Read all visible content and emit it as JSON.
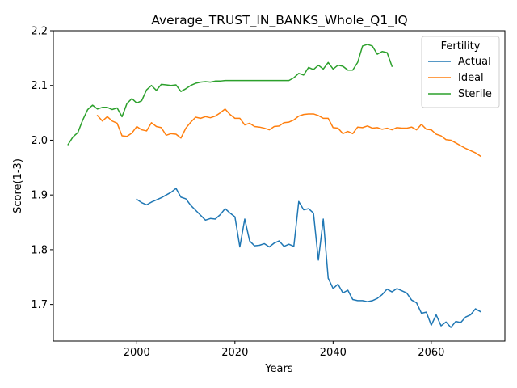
{
  "chart_data": {
    "type": "line",
    "title": "Average_TRUST_IN_BANKS_Whole_Q1_IQ",
    "xlabel": "Years",
    "ylabel": "Score(1-3)",
    "xlim": [
      1983,
      2075
    ],
    "ylim": [
      1.633,
      2.2
    ],
    "x_ticks": [
      2000,
      2020,
      2040,
      2060
    ],
    "y_ticks": [
      1.7,
      1.8,
      1.9,
      2.0,
      2.1,
      2.2
    ],
    "x_tick_labels": [
      "2000",
      "2020",
      "2040",
      "2060"
    ],
    "y_tick_labels": [
      "1.7",
      "1.8",
      "1.9",
      "2.0",
      "2.1",
      "2.2"
    ],
    "grid": false,
    "legend": {
      "title": "Fertility",
      "position": "top-right"
    },
    "series": [
      {
        "name": "Actual",
        "color": "#1f77b4",
        "x": [
          2000,
          2001,
          2002,
          2003,
          2004,
          2005,
          2006,
          2007,
          2008,
          2009,
          2010,
          2011,
          2012,
          2013,
          2014,
          2015,
          2016,
          2017,
          2018,
          2019,
          2020,
          2021,
          2022,
          2023,
          2024,
          2025,
          2026,
          2027,
          2028,
          2029,
          2030,
          2031,
          2032,
          2033,
          2034,
          2035,
          2036,
          2037,
          2038,
          2039,
          2040,
          2041,
          2042,
          2043,
          2044,
          2045,
          2046,
          2047,
          2048,
          2049,
          2050,
          2051,
          2052,
          2053,
          2054,
          2055,
          2056,
          2057,
          2058,
          2059,
          2060,
          2061,
          2062,
          2063,
          2064,
          2065,
          2066,
          2067,
          2068,
          2069,
          2070
        ],
        "values": [
          1.892,
          1.886,
          1.882,
          1.887,
          1.891,
          1.895,
          1.9,
          1.905,
          1.912,
          1.896,
          1.893,
          1.881,
          1.872,
          1.863,
          1.854,
          1.857,
          1.856,
          1.864,
          1.875,
          1.867,
          1.86,
          1.805,
          1.856,
          1.816,
          1.807,
          1.808,
          1.811,
          1.805,
          1.812,
          1.816,
          1.806,
          1.81,
          1.806,
          1.888,
          1.873,
          1.875,
          1.867,
          1.781,
          1.856,
          1.748,
          1.729,
          1.737,
          1.721,
          1.726,
          1.709,
          1.707,
          1.707,
          1.705,
          1.707,
          1.711,
          1.718,
          1.728,
          1.723,
          1.729,
          1.725,
          1.721,
          1.708,
          1.703,
          1.684,
          1.686,
          1.662,
          1.681,
          1.661,
          1.668,
          1.658,
          1.669,
          1.667,
          1.677,
          1.681,
          1.692,
          1.687
        ]
      },
      {
        "name": "Ideal",
        "color": "#ff7f0e",
        "x": [
          1992,
          1993,
          1994,
          1995,
          1996,
          1997,
          1998,
          1999,
          2000,
          2001,
          2002,
          2003,
          2004,
          2005,
          2006,
          2007,
          2008,
          2009,
          2010,
          2011,
          2012,
          2013,
          2014,
          2015,
          2016,
          2017,
          2018,
          2019,
          2020,
          2021,
          2022,
          2023,
          2024,
          2025,
          2026,
          2027,
          2028,
          2029,
          2030,
          2031,
          2032,
          2033,
          2034,
          2035,
          2036,
          2037,
          2038,
          2039,
          2040,
          2041,
          2042,
          2043,
          2044,
          2045,
          2046,
          2047,
          2048,
          2049,
          2050,
          2051,
          2052,
          2053,
          2054,
          2055,
          2056,
          2057,
          2058,
          2059,
          2060,
          2061,
          2062,
          2063,
          2064,
          2065,
          2066,
          2067,
          2068,
          2069,
          2070
        ],
        "values": [
          2.045,
          2.035,
          2.043,
          2.035,
          2.031,
          2.008,
          2.007,
          2.013,
          2.025,
          2.019,
          2.017,
          2.032,
          2.025,
          2.023,
          2.009,
          2.012,
          2.011,
          2.004,
          2.022,
          2.033,
          2.042,
          2.04,
          2.043,
          2.041,
          2.044,
          2.05,
          2.057,
          2.047,
          2.04,
          2.04,
          2.028,
          2.031,
          2.025,
          2.024,
          2.022,
          2.019,
          2.025,
          2.026,
          2.032,
          2.033,
          2.037,
          2.044,
          2.047,
          2.048,
          2.048,
          2.045,
          2.04,
          2.04,
          2.023,
          2.022,
          2.012,
          2.016,
          2.012,
          2.024,
          2.023,
          2.026,
          2.022,
          2.023,
          2.02,
          2.022,
          2.019,
          2.023,
          2.022,
          2.022,
          2.024,
          2.019,
          2.029,
          2.02,
          2.019,
          2.011,
          2.008,
          2.001,
          2.0,
          1.995,
          1.99,
          1.985,
          1.981,
          1.977,
          1.971
        ]
      },
      {
        "name": "Sterile",
        "color": "#2ca02c",
        "x": [
          1986,
          1987,
          1988,
          1989,
          1990,
          1991,
          1992,
          1993,
          1994,
          1995,
          1996,
          1997,
          1998,
          1999,
          2000,
          2001,
          2002,
          2003,
          2004,
          2005,
          2006,
          2007,
          2008,
          2009,
          2010,
          2011,
          2012,
          2013,
          2014,
          2015,
          2016,
          2017,
          2018,
          2019,
          2020,
          2021,
          2022,
          2023,
          2024,
          2025,
          2026,
          2027,
          2028,
          2029,
          2030,
          2031,
          2032,
          2033,
          2034,
          2035,
          2036,
          2037,
          2038,
          2039,
          2040,
          2041,
          2042,
          2043,
          2044,
          2045,
          2046,
          2047,
          2048,
          2049,
          2050,
          2051,
          2052
        ],
        "values": [
          1.992,
          2.006,
          2.014,
          2.037,
          2.056,
          2.064,
          2.057,
          2.06,
          2.06,
          2.056,
          2.059,
          2.043,
          2.067,
          2.076,
          2.068,
          2.072,
          2.092,
          2.1,
          2.091,
          2.102,
          2.101,
          2.1,
          2.101,
          2.089,
          2.094,
          2.1,
          2.104,
          2.106,
          2.107,
          2.106,
          2.108,
          2.108,
          2.109,
          2.109,
          2.109,
          2.109,
          2.109,
          2.109,
          2.109,
          2.109,
          2.109,
          2.109,
          2.109,
          2.109,
          2.109,
          2.109,
          2.114,
          2.122,
          2.119,
          2.133,
          2.129,
          2.137,
          2.13,
          2.142,
          2.13,
          2.137,
          2.135,
          2.128,
          2.128,
          2.142,
          2.172,
          2.175,
          2.172,
          2.157,
          2.162,
          2.16,
          2.135
        ]
      }
    ]
  }
}
